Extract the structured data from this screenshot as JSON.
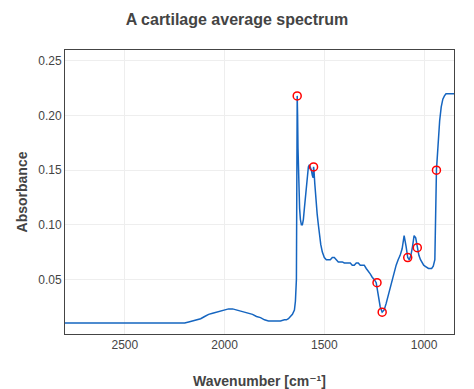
{
  "chart_data": {
    "type": "line",
    "title": "A cartilage average spectrum",
    "xlabel": "Wavenumber [cm⁻¹]",
    "ylabel": "Absorbance",
    "xlim": [
      2800,
      850
    ],
    "ylim": [
      0,
      0.26
    ],
    "xticks": [
      2500,
      2000,
      1500,
      1000
    ],
    "yticks": [
      0.05,
      {
        "value": 0.1,
        "label": "0.10"
      },
      0.15,
      {
        "value": 0.2,
        "label": "0.20"
      },
      0.25
    ],
    "grid": true,
    "series": [
      {
        "type": "line",
        "color": "#1565c0",
        "x": [
          2800,
          2780,
          2760,
          2740,
          2720,
          2700,
          2680,
          2660,
          2640,
          2620,
          2600,
          2580,
          2560,
          2540,
          2520,
          2500,
          2480,
          2460,
          2440,
          2420,
          2400,
          2380,
          2360,
          2340,
          2320,
          2300,
          2280,
          2260,
          2240,
          2220,
          2200,
          2180,
          2160,
          2140,
          2120,
          2100,
          2080,
          2060,
          2040,
          2020,
          2000,
          1980,
          1960,
          1940,
          1920,
          1900,
          1880,
          1860,
          1840,
          1820,
          1800,
          1780,
          1760,
          1740,
          1720,
          1700,
          1690,
          1680,
          1670,
          1660,
          1650,
          1645,
          1640,
          1638,
          1636,
          1634,
          1632,
          1628,
          1624,
          1620,
          1615,
          1610,
          1605,
          1600,
          1595,
          1590,
          1585,
          1580,
          1575,
          1570,
          1565,
          1560,
          1556,
          1554,
          1552,
          1548,
          1544,
          1540,
          1536,
          1530,
          1524,
          1518,
          1510,
          1500,
          1490,
          1480,
          1470,
          1460,
          1450,
          1440,
          1430,
          1420,
          1410,
          1400,
          1390,
          1380,
          1370,
          1360,
          1350,
          1340,
          1330,
          1320,
          1310,
          1300,
          1290,
          1280,
          1270,
          1260,
          1250,
          1240,
          1230,
          1220,
          1210,
          1200,
          1190,
          1180,
          1170,
          1160,
          1150,
          1140,
          1130,
          1120,
          1110,
          1100,
          1090,
          1082,
          1074,
          1066,
          1058,
          1050,
          1042,
          1034,
          1026,
          1018,
          1010,
          1002,
          994,
          986,
          978,
          970,
          962,
          954,
          946,
          938,
          930,
          922,
          914,
          906,
          898,
          890,
          882,
          874,
          866,
          858,
          850
        ],
        "values": [
          0.01,
          0.01,
          0.01,
          0.01,
          0.01,
          0.01,
          0.01,
          0.01,
          0.01,
          0.01,
          0.01,
          0.01,
          0.01,
          0.01,
          0.01,
          0.01,
          0.01,
          0.01,
          0.01,
          0.01,
          0.01,
          0.01,
          0.01,
          0.01,
          0.01,
          0.01,
          0.01,
          0.01,
          0.01,
          0.01,
          0.01,
          0.011,
          0.012,
          0.013,
          0.014,
          0.016,
          0.018,
          0.019,
          0.02,
          0.021,
          0.022,
          0.023,
          0.023,
          0.022,
          0.021,
          0.02,
          0.019,
          0.018,
          0.016,
          0.015,
          0.013,
          0.012,
          0.012,
          0.012,
          0.012,
          0.013,
          0.013,
          0.014,
          0.016,
          0.018,
          0.022,
          0.03,
          0.05,
          0.12,
          0.218,
          0.2,
          0.17,
          0.13,
          0.115,
          0.105,
          0.1,
          0.1,
          0.105,
          0.115,
          0.125,
          0.135,
          0.145,
          0.153,
          0.155,
          0.153,
          0.15,
          0.145,
          0.143,
          0.153,
          0.15,
          0.138,
          0.125,
          0.118,
          0.11,
          0.1,
          0.09,
          0.082,
          0.075,
          0.07,
          0.068,
          0.068,
          0.068,
          0.07,
          0.07,
          0.068,
          0.066,
          0.066,
          0.066,
          0.065,
          0.065,
          0.065,
          0.065,
          0.063,
          0.063,
          0.065,
          0.065,
          0.063,
          0.063,
          0.063,
          0.06,
          0.058,
          0.055,
          0.052,
          0.05,
          0.047,
          0.035,
          0.025,
          0.02,
          0.022,
          0.028,
          0.035,
          0.042,
          0.05,
          0.058,
          0.063,
          0.068,
          0.072,
          0.078,
          0.09,
          0.08,
          0.07,
          0.068,
          0.072,
          0.08,
          0.09,
          0.088,
          0.079,
          0.072,
          0.068,
          0.065,
          0.063,
          0.062,
          0.061,
          0.06,
          0.06,
          0.06,
          0.062,
          0.068,
          0.15,
          0.175,
          0.195,
          0.208,
          0.215,
          0.218,
          0.22,
          0.22,
          0.22,
          0.22,
          0.22,
          0.22
        ]
      },
      {
        "type": "scatter",
        "color": "red",
        "marker": "circle-open",
        "x": [
          1636,
          1554,
          1236,
          1210,
          1082,
          1034,
          938
        ],
        "values": [
          0.218,
          0.153,
          0.047,
          0.02,
          0.07,
          0.079,
          0.15
        ]
      }
    ]
  }
}
